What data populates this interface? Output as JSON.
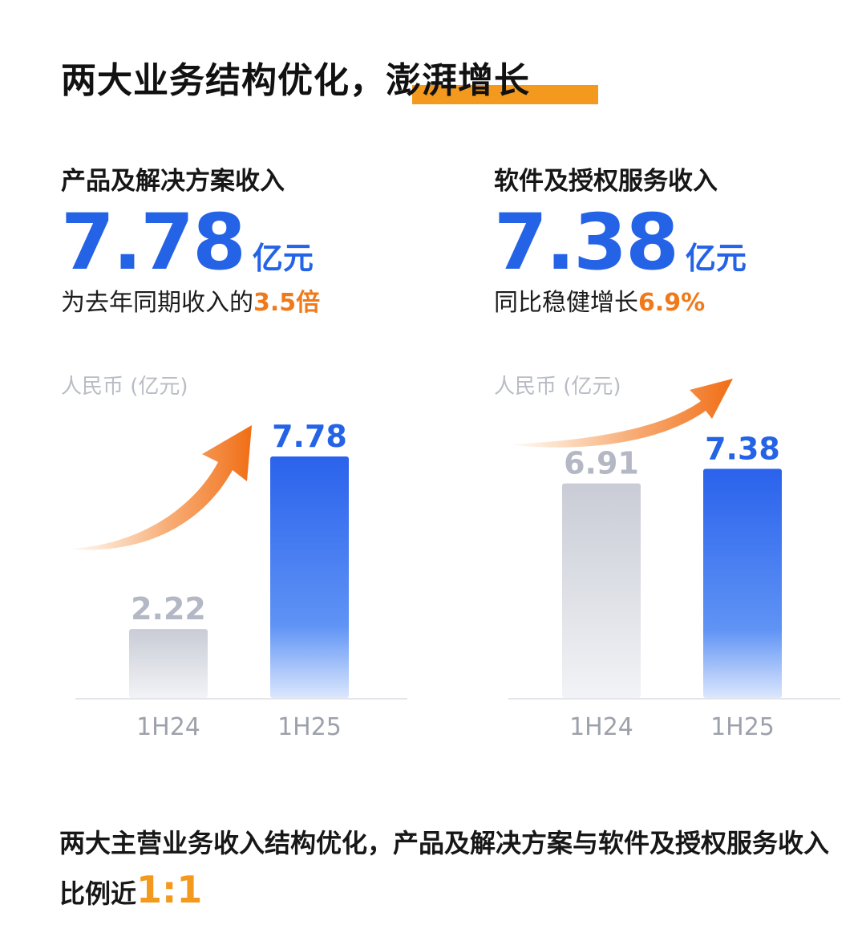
{
  "title": {
    "text": "两大业务结构优化，",
    "highlight": "澎湃增长",
    "highlight_color": "#f39a1e"
  },
  "panels": [
    {
      "heading": "产品及解决方案收入",
      "big_value": "7.78",
      "big_unit": "亿元",
      "subtitle_prefix": "为去年同期收入的",
      "subtitle_highlight": "3.5倍"
    },
    {
      "heading": "软件及授权服务收入",
      "big_value": "7.38",
      "big_unit": "亿元",
      "subtitle_prefix": "同比稳健增长",
      "subtitle_highlight": "6.9%"
    }
  ],
  "chart_data": [
    {
      "type": "bar",
      "ylabel": "人民币 (亿元)",
      "categories": [
        "1H24",
        "1H25"
      ],
      "values": [
        2.22,
        7.78
      ],
      "value_labels": [
        "2.22",
        "7.78"
      ],
      "ylim": [
        0,
        9.2
      ],
      "colors": [
        "#c9ccd6",
        "#2a62ec"
      ],
      "label_colors": [
        "#b4b8c4",
        "#2563e6"
      ],
      "grid": false,
      "annotation": "orange-growth-arrow"
    },
    {
      "type": "bar",
      "ylabel": "人民币 (亿元)",
      "categories": [
        "1H24",
        "1H25"
      ],
      "values": [
        6.91,
        7.38
      ],
      "value_labels": [
        "6.91",
        "7.38"
      ],
      "ylim": [
        0,
        9.2
      ],
      "colors": [
        "#c9ccd6",
        "#2a62ec"
      ],
      "label_colors": [
        "#b4b8c4",
        "#2563e6"
      ],
      "grid": false,
      "annotation": "orange-growth-arrow"
    }
  ],
  "footer": {
    "text": "两大主营业务收入结构优化，产品及解决方案与软件及授权服务收入比例近",
    "ratio": "1:1",
    "ratio_color": "#f39a1e"
  },
  "colors": {
    "accent_blue": "#2563e6",
    "accent_orange": "#f07a1a"
  }
}
